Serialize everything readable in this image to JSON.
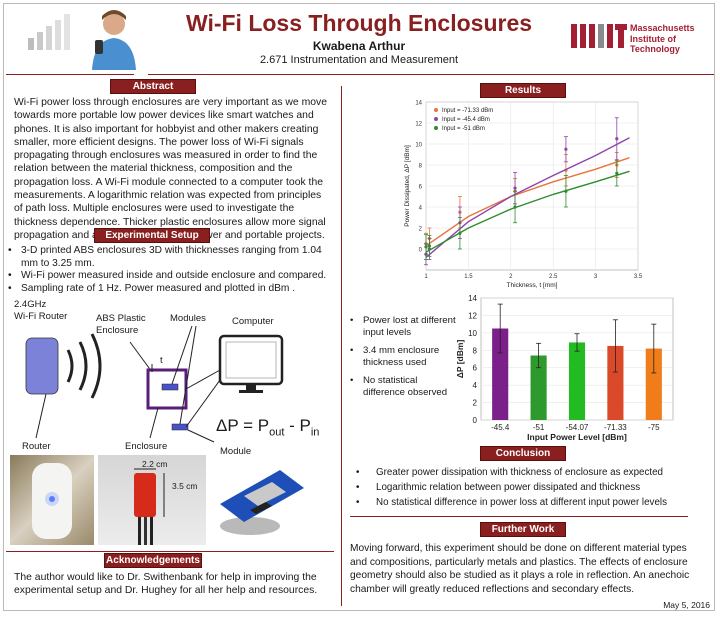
{
  "header": {
    "title": "Wi-Fi Loss Through Enclosures",
    "author": "Kwabena Arthur",
    "course": "2.671 Instrumentation and Measurement",
    "logo_text": "MIT",
    "institution_lines": [
      "Massachusetts",
      "Institute of",
      "Technology"
    ]
  },
  "abstract": {
    "heading": "Abstract",
    "text": "Wi-Fi power loss through enclosures are very important as we move towards more portable low power devices like smart watches and phones. It is also important for hobbyist and other makers creating smaller, more efficient designs. The power loss of Wi-Fi signals propagating through enclosures was measured in order to find the relation between the material thickness, composition and the propagation loss. A Wi-Fi module connected to a computer took the measurements. A logarithmic relation was expected from principles of path loss. Multiple enclosures were used to investigate the thickness dependence. Thicker plastic enclosures allow more signal propagation and are superior for lower-power and portable projects."
  },
  "setup": {
    "heading": "Experimental Setup",
    "bullets": [
      "3-D printed ABS enclosures 3D with thicknesses ranging from 1.04 mm to 3.25 mm.",
      "Wi-Fi power measured inside and outside enclosure and compared.",
      "Sampling rate of 1 Hz. Power measured and plotted in dBm ."
    ],
    "diagram": {
      "router_label": "2.4GHz\nWi-Fi Router",
      "router_bottom": "Router",
      "enclosure_label": "ABS Plastic\nEnclosure",
      "modules_label": "Modules",
      "computer_label": "Computer",
      "t_label": "t",
      "enclosure_bottom": "Enclosure",
      "module_label": "Module",
      "equation": "ΔP = P",
      "eq_sub_out": "out",
      "eq_mid": " - P",
      "eq_sub_in": "in"
    },
    "photo_dims": {
      "width": "2.2 cm",
      "height": "3.5 cm"
    }
  },
  "acknowledgements": {
    "heading": "Acknowledgements",
    "text": "The author would like to Dr. Swithenbank for help in improving the experimental setup and Dr. Hughey for all her help and resources."
  },
  "results": {
    "heading": "Results",
    "notes": [
      "Power lost at different input levels",
      "3.4 mm enclosure thickness used",
      "No statistical difference observed"
    ]
  },
  "conclusion": {
    "heading": "Conclusion",
    "bullets": [
      "Greater power dissipation with thickness of enclosure as expected",
      "Logarithmic relation between power dissipated and thickness",
      "No statistical difference in power loss at different input power levels"
    ]
  },
  "further_work": {
    "heading": "Further Work",
    "text": "Moving forward, this experiment should be done on different material types and compositions, particularly metals and plastics. The effects of enclosure geometry should also be studied as it plays a role in reflection. An anechoic chamber will greatly reduced reflections and secondary effects."
  },
  "date": "May 5, 2016",
  "chart_data": [
    {
      "type": "scatter",
      "title": "",
      "xlabel": "Thickness, t [mm]",
      "ylabel": "Power Dissipated, ΔP [dBm]",
      "xlim": [
        1,
        3.5
      ],
      "ylim": [
        -2,
        14
      ],
      "xticks": [
        1,
        1.5,
        2,
        2.5,
        3,
        3.5
      ],
      "yticks": [
        0,
        2,
        4,
        6,
        8,
        10,
        12,
        14
      ],
      "legend_position": "top-left",
      "series": [
        {
          "name": "Input = -71.33 dBm",
          "color": "#e8743b",
          "x": [
            1.0,
            1.04,
            1.4,
            2.05,
            2.65,
            3.25
          ],
          "y": [
            0.5,
            1.0,
            3.5,
            5.5,
            7.5,
            8.0
          ],
          "err": [
            1.0,
            1.0,
            1.5,
            1.2,
            1.5,
            1.2
          ],
          "fit": [
            [
              1.0,
              0.3
            ],
            [
              1.5,
              3.1
            ],
            [
              2.0,
              5.0
            ],
            [
              2.5,
              6.4
            ],
            [
              3.0,
              7.6
            ],
            [
              3.4,
              8.7
            ]
          ]
        },
        {
          "name": "Input = -45.4 dBm",
          "color": "#8e44ad",
          "x": [
            1.0,
            1.04,
            1.4,
            2.05,
            2.65,
            3.25
          ],
          "y": [
            -0.5,
            0.0,
            2.5,
            5.8,
            9.5,
            10.5
          ],
          "err": [
            1.0,
            1.0,
            1.5,
            1.5,
            1.2,
            2.0
          ],
          "fit": [
            [
              1.0,
              -0.8
            ],
            [
              1.5,
              2.6
            ],
            [
              2.0,
              5.0
            ],
            [
              2.5,
              7.0
            ],
            [
              3.0,
              8.9
            ],
            [
              3.4,
              10.6
            ]
          ]
        },
        {
          "name": "Input = -51 dBm",
          "color": "#2e8b2e",
          "x": [
            1.0,
            1.04,
            1.4,
            2.05,
            2.65,
            3.25
          ],
          "y": [
            0.2,
            0.3,
            1.5,
            4.0,
            5.5,
            7.2
          ],
          "err": [
            1.2,
            1.0,
            1.5,
            1.5,
            1.5,
            1.2
          ],
          "fit": [
            [
              1.0,
              -0.3
            ],
            [
              1.5,
              2.0
            ],
            [
              2.0,
              3.8
            ],
            [
              2.5,
              5.2
            ],
            [
              3.0,
              6.4
            ],
            [
              3.4,
              7.4
            ]
          ]
        }
      ]
    },
    {
      "type": "bar",
      "title": "",
      "xlabel": "Input Power Level [dBm]",
      "ylabel": "ΔP [dBm]",
      "ylim": [
        0,
        14
      ],
      "yticks": [
        0,
        2,
        4,
        6,
        8,
        10,
        12,
        14
      ],
      "categories": [
        "-45.4",
        "-51",
        "-54.07",
        "-71.33",
        "-75"
      ],
      "values": [
        10.5,
        7.4,
        8.9,
        8.5,
        8.2
      ],
      "errors": [
        2.8,
        1.4,
        1.0,
        3.0,
        2.8
      ],
      "colors": [
        "#7b1f8a",
        "#2e9a2e",
        "#22bb22",
        "#d9492a",
        "#f07d1a"
      ]
    }
  ]
}
